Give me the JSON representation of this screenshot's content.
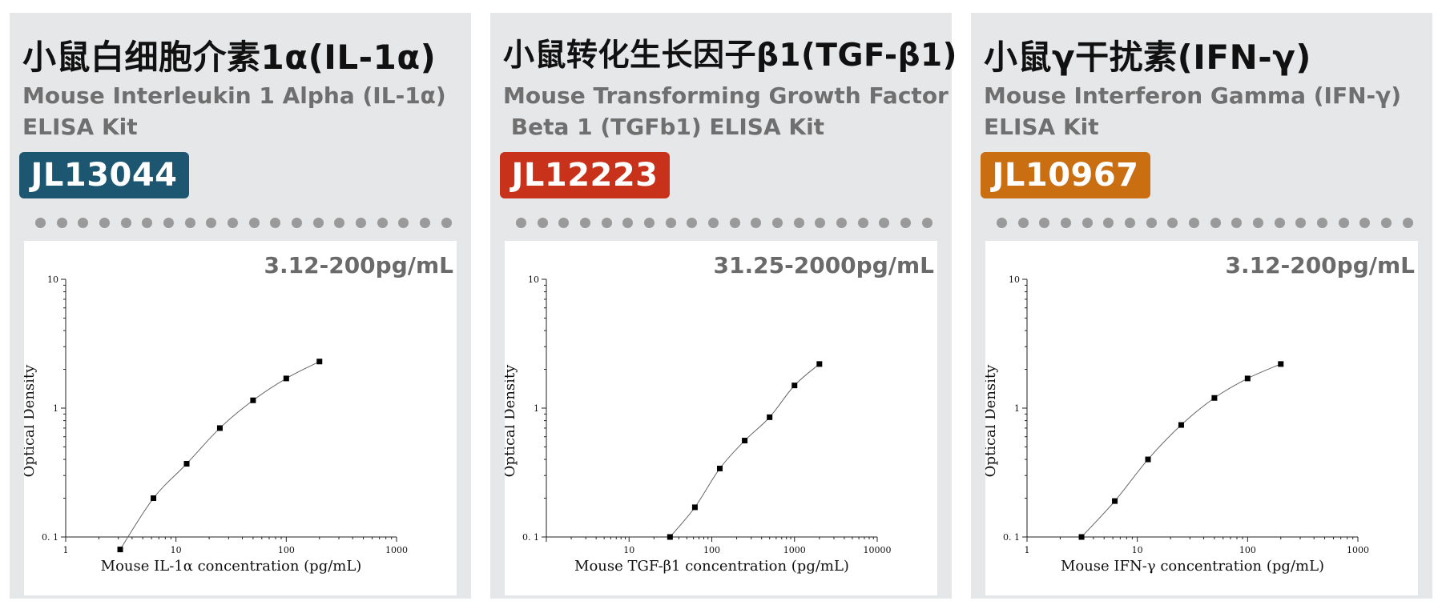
{
  "cards": [
    {
      "title_zh": "小鼠白细胞介素1α(IL-1α)",
      "title_en": "Mouse Interleukin 1 Alpha (IL-1α)\nELISA Kit",
      "code": "JL13044",
      "code_color": "#1c5670",
      "range": "3.12-200pg/mL"
    },
    {
      "title_zh": "小鼠转化生长因子β1(TGF-β1)",
      "title_en": "Mouse Transforming Growth Factor\n Beta 1 (TGFb1) ELISA Kit",
      "code": "JL12223",
      "code_color": "#c8321a",
      "range": "31.25-2000pg/mL"
    },
    {
      "title_zh": "小鼠γ干扰素(IFN-γ)",
      "title_en": "Mouse Interferon Gamma (IFN-γ)\nELISA Kit",
      "code": "JL10967",
      "code_color": "#c96f12",
      "range": "3.12-200pg/mL"
    }
  ],
  "chart_data": [
    {
      "type": "scatter",
      "xscale": "log",
      "yscale": "log",
      "xlim": [
        1,
        1000
      ],
      "ylim": [
        0.1,
        10
      ],
      "xticks": [
        1,
        10,
        100,
        1000
      ],
      "yticks": [
        0.1,
        1,
        10
      ],
      "xlabel": "Mouse IL-1α concentration (pg/mL)",
      "ylabel": "Optical Density",
      "x": [
        3.12,
        6.25,
        12.5,
        25,
        50,
        100,
        200
      ],
      "y": [
        0.08,
        0.2,
        0.37,
        0.7,
        1.15,
        1.7,
        2.3
      ],
      "fit_line": true
    },
    {
      "type": "scatter",
      "xscale": "log",
      "yscale": "log",
      "xlim": [
        1,
        10000
      ],
      "ylim": [
        0.1,
        10
      ],
      "xticks": [
        10,
        100,
        1000,
        10000
      ],
      "yticks": [
        0.1,
        1,
        10
      ],
      "xlabel": "Mouse TGF-β1 concentration (pg/mL)",
      "ylabel": "Optical Density",
      "x": [
        31.25,
        62.5,
        125,
        250,
        500,
        1000,
        2000
      ],
      "y": [
        0.1,
        0.17,
        0.34,
        0.56,
        0.85,
        1.5,
        2.2
      ],
      "fit_line": true
    },
    {
      "type": "scatter",
      "xscale": "log",
      "yscale": "log",
      "xlim": [
        1,
        1000
      ],
      "ylim": [
        0.1,
        10
      ],
      "xticks": [
        1,
        10,
        100,
        1000
      ],
      "yticks": [
        0.1,
        1,
        10
      ],
      "xlabel": "Mouse IFN-γ concentration (pg/mL)",
      "ylabel": "Optical Density",
      "x": [
        3.12,
        6.25,
        12.5,
        25,
        50,
        100,
        200
      ],
      "y": [
        0.1,
        0.19,
        0.4,
        0.74,
        1.2,
        1.7,
        2.2
      ],
      "fit_line": true
    }
  ]
}
